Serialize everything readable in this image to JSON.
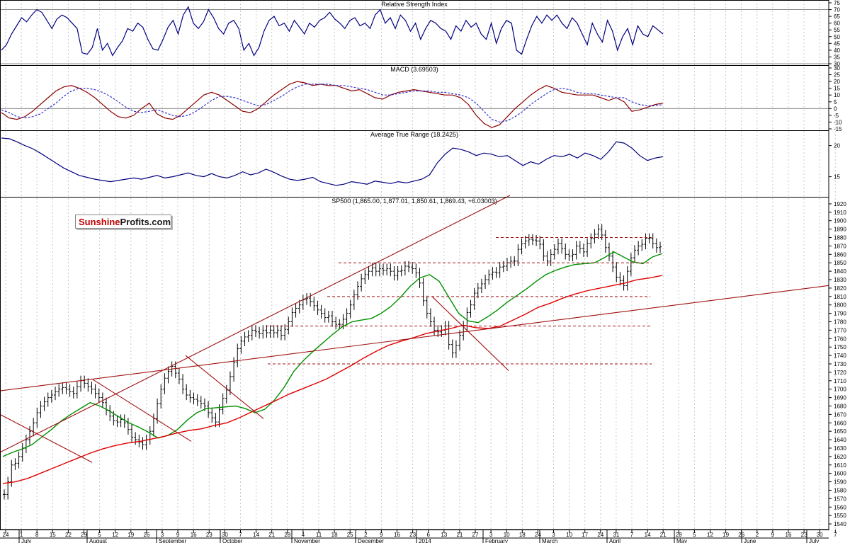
{
  "chart_data": [
    {
      "type": "line",
      "title": "Relative Strength Index",
      "ylim": [
        30,
        75
      ],
      "yticks": [
        30,
        35,
        40,
        45,
        50,
        55,
        60,
        65,
        70,
        75
      ],
      "reference_levels": [
        30,
        70
      ],
      "series": [
        {
          "color": "#000080",
          "values": [
            40,
            44,
            52,
            58,
            64,
            61,
            66,
            70,
            68,
            62,
            56,
            63,
            66,
            64,
            60,
            56,
            38,
            37,
            42,
            56,
            40,
            45,
            36,
            42,
            47,
            56,
            54,
            60,
            57,
            48,
            41,
            40,
            48,
            57,
            62,
            52,
            66,
            72,
            60,
            56,
            61,
            70,
            64,
            56,
            52,
            60,
            62,
            56,
            40,
            45,
            36,
            42,
            54,
            62,
            65,
            58,
            60,
            54,
            62,
            57,
            52,
            60,
            57,
            62,
            64,
            68,
            63,
            60,
            56,
            62,
            64,
            58,
            60,
            56,
            66,
            70,
            60,
            64,
            56,
            66,
            62,
            54,
            60,
            48,
            56,
            62,
            60,
            56,
            54,
            48,
            58,
            54,
            62,
            57,
            60,
            52,
            48,
            60,
            45,
            56,
            62,
            60,
            40,
            37,
            48,
            58,
            65,
            60,
            66,
            62,
            66,
            60,
            56,
            64,
            60,
            52,
            44,
            60,
            52,
            46,
            62,
            54,
            40,
            50,
            56,
            44,
            58,
            52,
            50,
            58,
            55,
            52
          ]
        }
      ]
    },
    {
      "type": "line",
      "title": "MACD (3.69503)",
      "ylim": [
        -15,
        30
      ],
      "yticks": [
        -15,
        -10,
        -5,
        0,
        5,
        10,
        15,
        20,
        25,
        30
      ],
      "series": [
        {
          "color": "#8b0000",
          "values": [
            -3,
            -7,
            -8,
            -6,
            -2,
            3,
            8,
            13,
            16,
            17,
            15,
            12,
            8,
            3,
            -2,
            -6,
            -7,
            -5,
            0,
            4,
            -4,
            -7,
            -8,
            -5,
            0,
            5,
            10,
            12,
            10,
            6,
            2,
            -2,
            -3,
            0,
            5,
            10,
            14,
            18,
            20,
            19,
            17,
            18,
            17,
            17,
            15,
            13,
            14,
            11,
            8,
            7,
            10,
            12,
            13,
            14,
            13,
            12,
            11,
            10,
            10,
            8,
            3,
            -5,
            -11,
            -14,
            -12,
            -6,
            0,
            5,
            10,
            14,
            17,
            15,
            12,
            11,
            10,
            10,
            10,
            8,
            6,
            8,
            5,
            -2,
            -1,
            1,
            3,
            4
          ]
        },
        {
          "color": "#3333cc",
          "dashed": true,
          "values": [
            -1,
            -3,
            -6,
            -7,
            -6,
            -4,
            0,
            4,
            9,
            13,
            15,
            15,
            14,
            12,
            9,
            5,
            1,
            -2,
            -3,
            -2,
            -1,
            -3,
            -5,
            -6,
            -5,
            -2,
            2,
            6,
            9,
            9,
            8,
            6,
            4,
            2,
            3,
            6,
            9,
            13,
            16,
            18,
            18,
            18,
            18,
            17,
            17,
            16,
            15,
            14,
            12,
            10,
            10,
            11,
            12,
            13,
            13,
            13,
            12,
            12,
            11,
            10,
            8,
            4,
            -2,
            -8,
            -10,
            -9,
            -6,
            -2,
            3,
            7,
            11,
            14,
            15,
            14,
            12,
            11,
            11,
            10,
            9,
            8,
            8,
            5,
            3,
            2,
            2,
            3
          ]
        }
      ]
    },
    {
      "type": "line",
      "title": "Average True Range (18.2425)",
      "ylim": [
        12,
        22
      ],
      "yticks": [
        15,
        20
      ],
      "series": [
        {
          "color": "#000080",
          "values": [
            21.2,
            21.1,
            20.6,
            20.0,
            19.5,
            18.8,
            18.0,
            17.2,
            16.4,
            15.8,
            15.2,
            14.9,
            14.6,
            14.4,
            14.2,
            14.4,
            14.6,
            14.8,
            14.6,
            14.9,
            15.2,
            14.8,
            15.0,
            15.3,
            15.6,
            15.2,
            15.0,
            15.5,
            15.0,
            14.8,
            15.2,
            15.8,
            15.3,
            15.6,
            16.2,
            15.7,
            15.1,
            14.6,
            14.4,
            14.6,
            14.9,
            14.2,
            13.9,
            13.6,
            13.8,
            14.2,
            14.0,
            13.8,
            14.3,
            14.1,
            13.9,
            14.2,
            14.0,
            14.3,
            14.6,
            15.3,
            17.2,
            18.6,
            19.6,
            19.4,
            19.0,
            18.4,
            18.8,
            18.6,
            18.2,
            18.4,
            17.6,
            16.8,
            17.4,
            17.0,
            17.8,
            18.4,
            18.2,
            18.6,
            18.0,
            18.8,
            18.4,
            17.8,
            19.0,
            20.6,
            20.4,
            19.6,
            18.4,
            17.6,
            18.0,
            18.2
          ]
        }
      ]
    },
    {
      "type": "line",
      "title": "SP500 (1,865.00, 1,877.01, 1,850.61, 1,869.43, +6.03003)",
      "ylim": [
        1535,
        1925
      ],
      "yticks": [
        1540,
        1550,
        1560,
        1570,
        1580,
        1590,
        1600,
        1610,
        1620,
        1630,
        1640,
        1650,
        1660,
        1670,
        1680,
        1690,
        1700,
        1710,
        1720,
        1730,
        1740,
        1750,
        1760,
        1770,
        1780,
        1790,
        1800,
        1810,
        1820,
        1830,
        1840,
        1850,
        1860,
        1870,
        1880,
        1890,
        1900,
        1910,
        1920
      ],
      "x_labels": [
        "24",
        "1",
        "8",
        "15",
        "22",
        "29",
        "5",
        "12",
        "19",
        "26",
        "3",
        "9",
        "16",
        "23",
        "30",
        "7",
        "14",
        "21",
        "28",
        "4",
        "11",
        "18",
        "25",
        "2",
        "9",
        "16",
        "23",
        "6",
        "13",
        "21",
        "27",
        "3",
        "10",
        "18",
        "24",
        "3",
        "10",
        "17",
        "24",
        "31",
        "7",
        "14",
        "21",
        "28",
        "5",
        "12",
        "19",
        "26",
        "2",
        "9",
        "16",
        "23",
        "30",
        "7"
      ],
      "month_labels": [
        "July",
        "August",
        "September",
        "October",
        "November",
        "December",
        "2014",
        "February",
        "March",
        "April",
        "May",
        "June",
        "July"
      ],
      "closes": [
        1575,
        1590,
        1610,
        1612,
        1620,
        1630,
        1640,
        1650,
        1660,
        1672,
        1680,
        1685,
        1690,
        1693,
        1697,
        1700,
        1702,
        1700,
        1697,
        1695,
        1703,
        1710,
        1707,
        1703,
        1700,
        1695,
        1690,
        1684,
        1675,
        1668,
        1663,
        1661,
        1664,
        1660,
        1652,
        1643,
        1640,
        1637,
        1634,
        1640,
        1650,
        1665,
        1683,
        1700,
        1713,
        1721,
        1727,
        1719,
        1712,
        1700,
        1693,
        1690,
        1688,
        1686,
        1683,
        1680,
        1672,
        1666,
        1661,
        1676,
        1689,
        1699,
        1715,
        1732,
        1748,
        1757,
        1762,
        1764,
        1770,
        1768,
        1766,
        1770,
        1767,
        1770,
        1767,
        1770,
        1764,
        1771,
        1780,
        1791,
        1796,
        1800,
        1806,
        1808,
        1804,
        1799,
        1794,
        1790,
        1785,
        1787,
        1780,
        1777,
        1777,
        1783,
        1790,
        1800,
        1812,
        1822,
        1831,
        1836,
        1840,
        1844,
        1840,
        1843,
        1841,
        1843,
        1840,
        1835,
        1840,
        1841,
        1846,
        1845,
        1843,
        1838,
        1826,
        1805,
        1790,
        1780,
        1770,
        1768,
        1770,
        1775,
        1753,
        1743,
        1752,
        1764,
        1775,
        1791,
        1800,
        1814,
        1820,
        1825,
        1830,
        1836,
        1839,
        1838,
        1845,
        1846,
        1850,
        1852,
        1852,
        1866,
        1873,
        1876,
        1878,
        1877,
        1876,
        1872,
        1858,
        1852,
        1860,
        1866,
        1873,
        1867,
        1860,
        1858,
        1860,
        1870,
        1867,
        1863,
        1873,
        1879,
        1884,
        1890,
        1883,
        1868,
        1858,
        1845,
        1833,
        1829,
        1823,
        1840,
        1856,
        1865,
        1870,
        1872,
        1879,
        1879,
        1873,
        1868,
        1869
      ],
      "ma_green": [
        1620,
        1625,
        1629,
        1634,
        1643,
        1652,
        1662,
        1670,
        1677,
        1684,
        1680,
        1674,
        1667,
        1660,
        1655,
        1649,
        1642,
        1645,
        1652,
        1663,
        1672,
        1677,
        1678,
        1679,
        1680,
        1677,
        1672,
        1676,
        1687,
        1702,
        1721,
        1734,
        1745,
        1755,
        1765,
        1774,
        1780,
        1782,
        1784,
        1790,
        1798,
        1809,
        1822,
        1832,
        1836,
        1828,
        1809,
        1790,
        1781,
        1779,
        1786,
        1794,
        1803,
        1811,
        1819,
        1828,
        1836,
        1841,
        1845,
        1848,
        1849,
        1850,
        1856,
        1863,
        1857,
        1851,
        1849,
        1857,
        1861
      ],
      "ma_red": [
        1588,
        1590,
        1594,
        1600,
        1606,
        1612,
        1618,
        1624,
        1629,
        1633,
        1636,
        1638,
        1641,
        1644,
        1648,
        1651,
        1653,
        1657,
        1660,
        1666,
        1673,
        1680,
        1687,
        1694,
        1700,
        1706,
        1712,
        1720,
        1728,
        1737,
        1745,
        1752,
        1757,
        1761,
        1766,
        1769,
        1772,
        1776,
        1773,
        1772,
        1775,
        1782,
        1789,
        1797,
        1802,
        1808,
        1813,
        1817,
        1820,
        1823,
        1826,
        1830,
        1832,
        1835
      ],
      "annotations": {
        "support_resistance_levels": [
          1730,
          1775,
          1810,
          1850,
          1880
        ],
        "trend_lines": "rising wedge, long-term support and short-term downtrends (dark red)"
      }
    }
  ],
  "logo": {
    "part1": "Sunshine",
    "part2": "Profits.com"
  },
  "colors": {
    "price_bars": "#000000",
    "ma_short": "#009000",
    "ma_long": "#e00000",
    "trend": "#a01010",
    "indicator": "#000080",
    "grid": "#c8c8c8"
  }
}
